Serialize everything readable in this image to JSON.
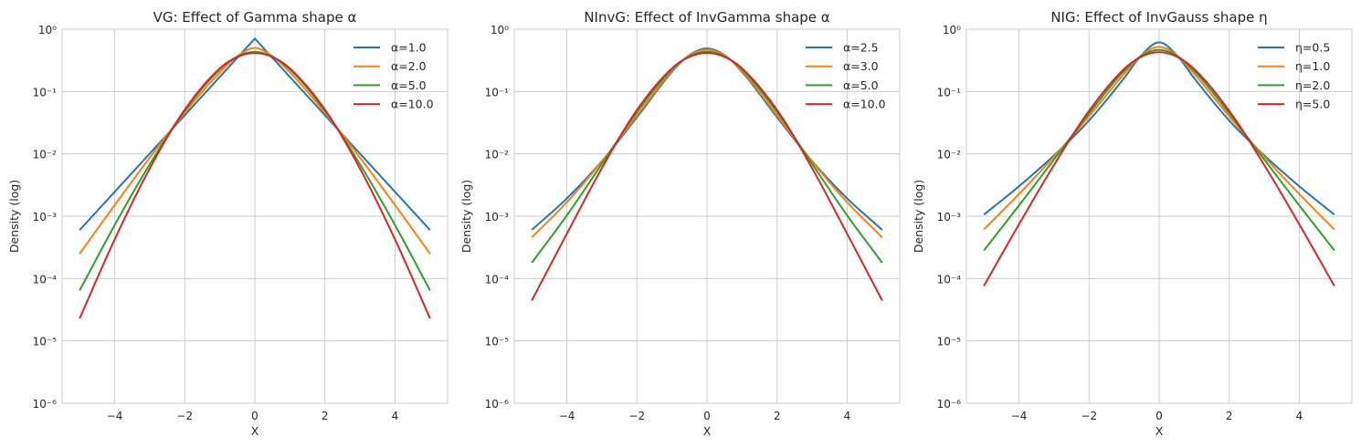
{
  "chart_data": [
    {
      "type": "line",
      "title": "VG: Effect of Gamma shape α",
      "xlabel": "X",
      "ylabel": "Density (log)",
      "yscale": "log",
      "xlim": [
        -5.5,
        5.5
      ],
      "ylim": [
        1e-06,
        1
      ],
      "grid": true,
      "legend": "top-right",
      "xtick_values": [
        -4,
        -2,
        0,
        2,
        4
      ],
      "xtick_labels": [
        "−4",
        "−2",
        "0",
        "2",
        "4"
      ],
      "ytick_values": [
        1,
        0.1,
        0.01,
        0.001,
        0.0001,
        1e-05,
        1e-06
      ],
      "ytick_labels": [
        "10⁰",
        "10⁻¹",
        "10⁻²",
        "10⁻³",
        "10⁻⁴",
        "10⁻⁵",
        "10⁻⁶"
      ],
      "x": [
        -5,
        -4,
        -3,
        -2,
        -1,
        -0.5,
        0,
        0.5,
        1,
        2,
        3,
        4,
        5
      ],
      "series": [
        {
          "name": "α=1.0",
          "color": "#1f77b4",
          "values": [
            0.000599,
            0.00246,
            0.0101,
            0.0417,
            0.1716,
            0.3487,
            0.7071,
            0.3487,
            0.1716,
            0.0417,
            0.0101,
            0.00246,
            0.000599
          ]
        },
        {
          "name": "α=2.0",
          "color": "#ff7f0e",
          "values": [
            0.00025,
            0.00151,
            0.00868,
            0.0458,
            0.203,
            0.3679,
            0.5,
            0.3679,
            0.203,
            0.0458,
            0.00868,
            0.00151,
            0.00025
          ]
        },
        {
          "name": "α=5.0",
          "color": "#2ca02c",
          "values": [
            6.44e-05,
            0.00072,
            0.0068,
            0.0493,
            0.227,
            0.3637,
            0.432,
            0.3637,
            0.227,
            0.0493,
            0.0068,
            0.00072,
            6.44e-05
          ]
        },
        {
          "name": "α=10.0",
          "color": "#d62728",
          "values": [
            2.29e-05,
            0.000424,
            0.00581,
            0.0513,
            0.2351,
            0.3585,
            0.4147,
            0.3585,
            0.2351,
            0.0513,
            0.00581,
            0.000424,
            2.29e-05
          ]
        }
      ]
    },
    {
      "type": "line",
      "title": "NInvG: Effect of InvGamma shape α",
      "xlabel": "X",
      "ylabel": "Density (log)",
      "yscale": "log",
      "xlim": [
        -5.5,
        5.5
      ],
      "ylim": [
        1e-06,
        1
      ],
      "grid": true,
      "legend": "top-right",
      "xtick_values": [
        -4,
        -2,
        0,
        2,
        4
      ],
      "xtick_labels": [
        "−4",
        "−2",
        "0",
        "2",
        "4"
      ],
      "ytick_values": [
        1,
        0.1,
        0.01,
        0.001,
        0.0001,
        1e-05,
        1e-06
      ],
      "ytick_labels": [
        "10⁰",
        "10⁻¹",
        "10⁻²",
        "10⁻³",
        "10⁻⁴",
        "10⁻⁵",
        "10⁻⁶"
      ],
      "x": [
        -5,
        -4,
        -3,
        -2,
        -1,
        -0.5,
        0,
        0.5,
        1,
        2,
        3,
        4,
        5
      ],
      "series": [
        {
          "name": "α=2.5",
          "color": "#1f77b4",
          "values": [
            0.000603,
            0.00193,
            0.00766,
            0.0386,
            0.2067,
            0.385,
            0.49,
            0.385,
            0.2067,
            0.0386,
            0.00766,
            0.00193,
            0.000603
          ]
        },
        {
          "name": "α=3.0",
          "color": "#ff7f0e",
          "values": [
            0.000457,
            0.00168,
            0.00756,
            0.0414,
            0.2146,
            0.379,
            0.4687,
            0.379,
            0.2146,
            0.0414,
            0.00756,
            0.00168,
            0.000457
          ]
        },
        {
          "name": "α=5.0",
          "color": "#2ca02c",
          "values": [
            0.000179,
            0.00103,
            0.00689,
            0.0468,
            0.2276,
            0.367,
            0.435,
            0.367,
            0.2276,
            0.0468,
            0.00689,
            0.00103,
            0.000179
          ]
        },
        {
          "name": "α=10.0",
          "color": "#d62728",
          "values": [
            4.44e-05,
            0.000522,
            0.00589,
            0.0505,
            0.2354,
            0.3593,
            0.4153,
            0.3593,
            0.2354,
            0.0505,
            0.00589,
            0.000522,
            4.44e-05
          ]
        }
      ]
    },
    {
      "type": "line",
      "title": "NIG: Effect of InvGauss shape η",
      "xlabel": "X",
      "ylabel": "Density (log)",
      "yscale": "log",
      "xlim": [
        -5.5,
        5.5
      ],
      "ylim": [
        1e-06,
        1
      ],
      "grid": true,
      "legend": "top-right",
      "xtick_values": [
        -4,
        -2,
        0,
        2,
        4
      ],
      "xtick_labels": [
        "−4",
        "−2",
        "0",
        "2",
        "4"
      ],
      "ytick_values": [
        1,
        0.1,
        0.01,
        0.001,
        0.0001,
        1e-05,
        1e-06
      ],
      "ytick_labels": [
        "10⁰",
        "10⁻¹",
        "10⁻²",
        "10⁻³",
        "10⁻⁴",
        "10⁻⁵",
        "10⁻⁶"
      ],
      "x": [
        -5,
        -4,
        -3,
        -2,
        -1,
        -0.5,
        0,
        0.5,
        1,
        2,
        3,
        4,
        5
      ],
      "series": [
        {
          "name": "η=0.5",
          "color": "#1f77b4",
          "values": [
            0.00106,
            0.00302,
            0.00947,
            0.0343,
            0.1641,
            0.3851,
            0.6147,
            0.3851,
            0.1641,
            0.0343,
            0.00947,
            0.00302,
            0.00106
          ]
        },
        {
          "name": "η=1.0",
          "color": "#ff7f0e",
          "values": [
            0.000614,
            0.00227,
            0.00903,
            0.04,
            0.1925,
            0.3835,
            0.5208,
            0.3835,
            0.1925,
            0.04,
            0.00903,
            0.00227,
            0.000614
          ]
        },
        {
          "name": "η=2.0",
          "color": "#2ca02c",
          "values": [
            0.000282,
            0.00149,
            0.0081,
            0.0445,
            0.2146,
            0.3757,
            0.4653,
            0.3757,
            0.2146,
            0.0445,
            0.0081,
            0.00149,
            0.000282
          ]
        },
        {
          "name": "η=5.0",
          "color": "#d62728",
          "values": [
            7.63e-05,
            0.00074,
            0.00662,
            0.049,
            0.2298,
            0.3634,
            0.4273,
            0.3634,
            0.2298,
            0.049,
            0.00662,
            0.00074,
            7.63e-05
          ]
        }
      ]
    }
  ]
}
